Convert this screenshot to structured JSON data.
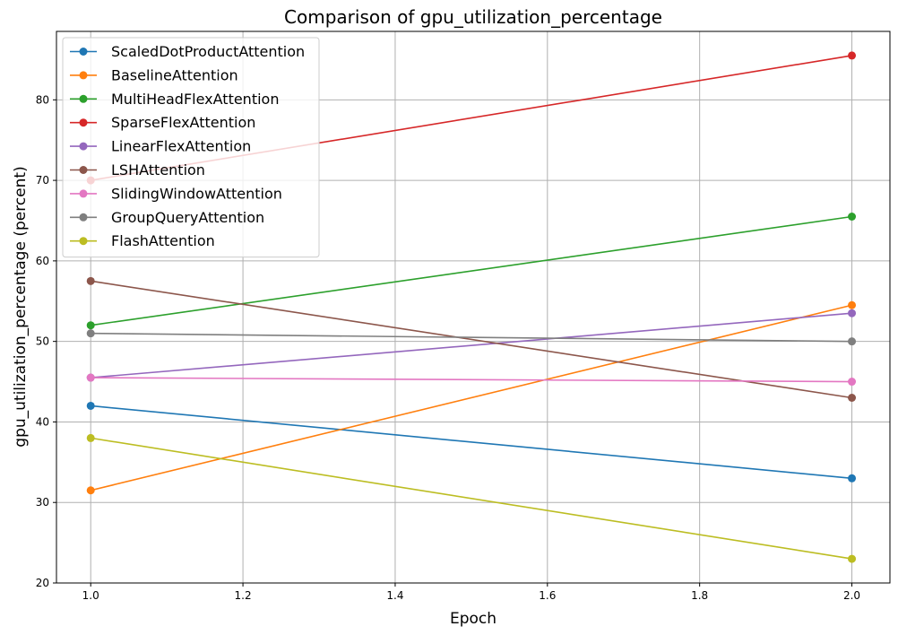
{
  "chart_data": {
    "type": "line",
    "title": "Comparison of gpu_utilization_percentage",
    "xlabel": "Epoch",
    "ylabel": "gpu_utilization_percentage (percent)",
    "x": [
      1.0,
      2.0
    ],
    "xlim": [
      0.955,
      2.05
    ],
    "ylim": [
      20,
      88.5
    ],
    "xticks": [
      "1.0",
      "1.2",
      "1.4",
      "1.6",
      "1.8",
      "2.0"
    ],
    "yticks": [
      "20",
      "30",
      "40",
      "50",
      "60",
      "70",
      "80"
    ],
    "grid": true,
    "legend_position": "top-left",
    "series": [
      {
        "name": "ScaledDotProductAttention",
        "color": "#1f77b4",
        "values": [
          42.0,
          33.0
        ]
      },
      {
        "name": "BaselineAttention",
        "color": "#ff7f0e",
        "values": [
          31.5,
          54.5
        ]
      },
      {
        "name": "MultiHeadFlexAttention",
        "color": "#2ca02c",
        "values": [
          52.0,
          65.5
        ]
      },
      {
        "name": "SparseFlexAttention",
        "color": "#d62728",
        "values": [
          70.0,
          85.5
        ]
      },
      {
        "name": "LinearFlexAttention",
        "color": "#9467bd",
        "values": [
          45.5,
          53.5
        ]
      },
      {
        "name": "LSHAttention",
        "color": "#8c564b",
        "values": [
          57.5,
          43.0
        ]
      },
      {
        "name": "SlidingWindowAttention",
        "color": "#e377c2",
        "values": [
          45.5,
          45.0
        ]
      },
      {
        "name": "GroupQueryAttention",
        "color": "#7f7f7f",
        "values": [
          51.0,
          50.0
        ]
      },
      {
        "name": "FlashAttention",
        "color": "#bcbd22",
        "values": [
          38.0,
          23.0
        ]
      }
    ]
  }
}
